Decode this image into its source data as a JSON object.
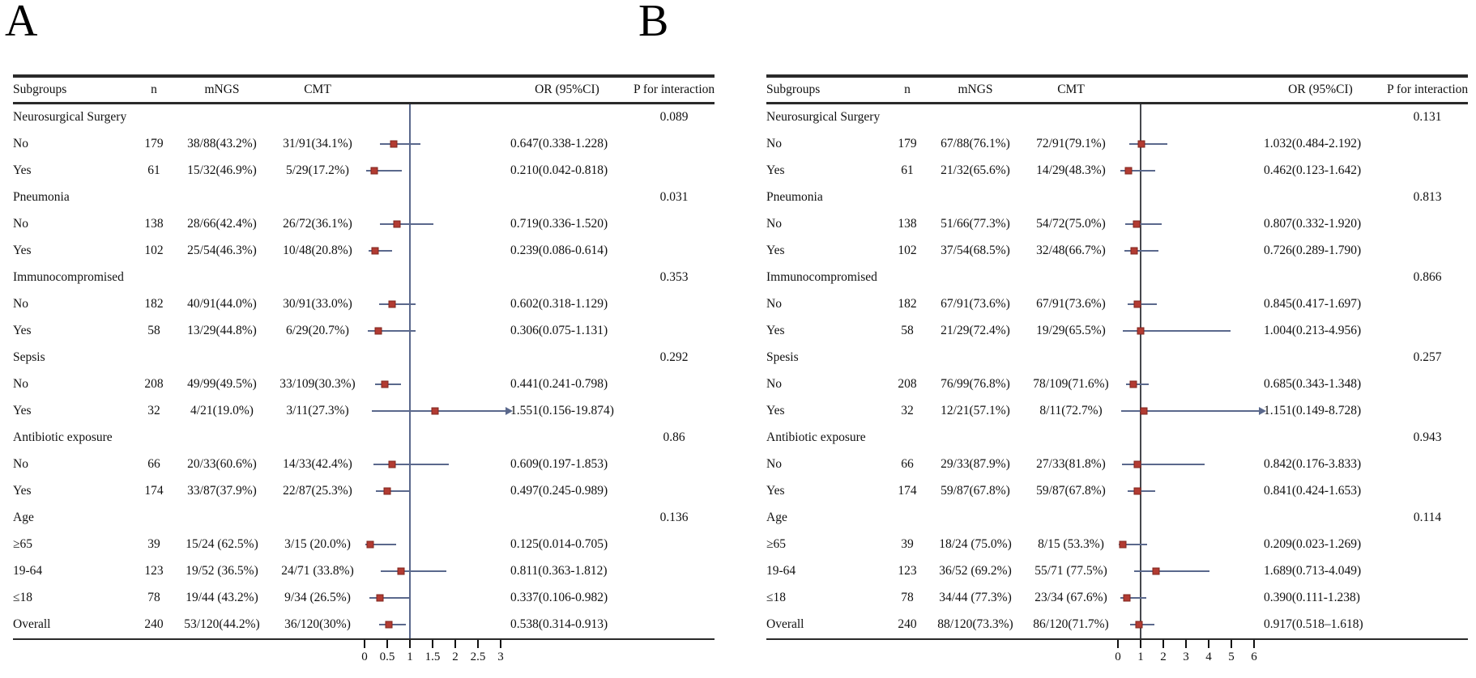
{
  "colors": {
    "marker_fill": "#b23b32",
    "marker_border": "#7e241e",
    "ci_line": "#5a688c",
    "table_rule": "#2a2a2a",
    "text": "#111111"
  },
  "chart_data": [
    {
      "type": "forest",
      "letter": "A",
      "columns": [
        "Subgroups",
        "n",
        "mNGS",
        "CMT",
        "OR (95%CI)",
        "P for interaction"
      ],
      "axis": {
        "min": 0,
        "max": 3,
        "refline": 1,
        "ticks": [
          0,
          0.5,
          1,
          1.5,
          2,
          2.5,
          3
        ],
        "tick_labels": [
          "0",
          "0.5",
          "1",
          "1.5",
          "2",
          "2.5",
          "3"
        ]
      },
      "refline_color": "#5a688c",
      "rows": [
        {
          "type": "group",
          "label": "Neurosurgical Surgery",
          "p": "0.089"
        },
        {
          "type": "data",
          "label": "No",
          "n": "179",
          "mngs": "38/88(43.2%)",
          "cmt": "31/91(34.1%)",
          "or_text": "0.647(0.338-1.228)",
          "or": 0.647,
          "lo": 0.338,
          "hi": 1.228
        },
        {
          "type": "data",
          "label": "Yes",
          "n": "61",
          "mngs": "15/32(46.9%)",
          "cmt": "5/29(17.2%)",
          "or_text": "0.210(0.042-0.818)",
          "or": 0.21,
          "lo": 0.042,
          "hi": 0.818
        },
        {
          "type": "group",
          "label": "Pneumonia",
          "p": "0.031"
        },
        {
          "type": "data",
          "label": "No",
          "n": "138",
          "mngs": "28/66(42.4%)",
          "cmt": "26/72(36.1%)",
          "or_text": "0.719(0.336-1.520)",
          "or": 0.719,
          "lo": 0.336,
          "hi": 1.52
        },
        {
          "type": "data",
          "label": "Yes",
          "n": "102",
          "mngs": "25/54(46.3%)",
          "cmt": "10/48(20.8%)",
          "or_text": "0.239(0.086-0.614)",
          "or": 0.239,
          "lo": 0.086,
          "hi": 0.614
        },
        {
          "type": "group",
          "label": "Immunocompromised",
          "p": "0.353"
        },
        {
          "type": "data",
          "label": "No",
          "n": "182",
          "mngs": "40/91(44.0%)",
          "cmt": "30/91(33.0%)",
          "or_text": "0.602(0.318-1.129)",
          "or": 0.602,
          "lo": 0.318,
          "hi": 1.129
        },
        {
          "type": "data",
          "label": "Yes",
          "n": "58",
          "mngs": "13/29(44.8%)",
          "cmt": "6/29(20.7%)",
          "or_text": "0.306(0.075-1.131)",
          "or": 0.306,
          "lo": 0.075,
          "hi": 1.131
        },
        {
          "type": "group",
          "label": "Sepsis",
          "p": "0.292"
        },
        {
          "type": "data",
          "label": "No",
          "n": "208",
          "mngs": "49/99(49.5%)",
          "cmt": "33/109(30.3%)",
          "or_text": "0.441(0.241-0.798)",
          "or": 0.441,
          "lo": 0.241,
          "hi": 0.798
        },
        {
          "type": "data",
          "label": "Yes",
          "n": "32",
          "mngs": "4/21(19.0%)",
          "cmt": "3/11(27.3%)",
          "or_text": "1.551(0.156-19.874)",
          "or": 1.551,
          "lo": 0.156,
          "hi": 19.874
        },
        {
          "type": "group",
          "label": "Antibiotic exposure",
          "p": "0.86"
        },
        {
          "type": "data",
          "label": "No",
          "n": "66",
          "mngs": "20/33(60.6%)",
          "cmt": "14/33(42.4%)",
          "or_text": "0.609(0.197-1.853)",
          "or": 0.609,
          "lo": 0.197,
          "hi": 1.853
        },
        {
          "type": "data",
          "label": "Yes",
          "n": "174",
          "mngs": "33/87(37.9%)",
          "cmt": "22/87(25.3%)",
          "or_text": "0.497(0.245-0.989)",
          "or": 0.497,
          "lo": 0.245,
          "hi": 0.989
        },
        {
          "type": "group",
          "label": "Age",
          "p": "0.136"
        },
        {
          "type": "data",
          "label": "≥65",
          "n": "39",
          "mngs": "15/24 (62.5%)",
          "cmt": "3/15 (20.0%)",
          "or_text": "0.125(0.014-0.705)",
          "or": 0.125,
          "lo": 0.014,
          "hi": 0.705
        },
        {
          "type": "data",
          "label": "19-64",
          "n": "123",
          "mngs": "19/52 (36.5%)",
          "cmt": "24/71 (33.8%)",
          "or_text": "0.811(0.363-1.812)",
          "or": 0.811,
          "lo": 0.363,
          "hi": 1.812
        },
        {
          "type": "data",
          "label": "≤18",
          "n": "78",
          "mngs": "19/44 (43.2%)",
          "cmt": "9/34 (26.5%)",
          "or_text": "0.337(0.106-0.982)",
          "or": 0.337,
          "lo": 0.106,
          "hi": 0.982
        },
        {
          "type": "data",
          "label": "Overall",
          "n": "240",
          "mngs": "53/120(44.2%)",
          "cmt": "36/120(30%)",
          "or_text": "0.538(0.314-0.913)",
          "or": 0.538,
          "lo": 0.314,
          "hi": 0.913
        }
      ]
    },
    {
      "type": "forest",
      "letter": "B",
      "columns": [
        "Subgroups",
        "n",
        "mNGS",
        "CMT",
        "OR (95%CI)",
        "P for interaction"
      ],
      "axis": {
        "min": 0,
        "max": 6,
        "refline": 1,
        "ticks": [
          0,
          1,
          2,
          3,
          4,
          5,
          6
        ],
        "tick_labels": [
          "0",
          "1",
          "2",
          "3",
          "4",
          "5",
          "6"
        ]
      },
      "refline_color": "#46484e",
      "rows": [
        {
          "type": "group",
          "label": "Neurosurgical Surgery",
          "p": "0.131"
        },
        {
          "type": "data",
          "label": "No",
          "n": "179",
          "mngs": "67/88(76.1%)",
          "cmt": "72/91(79.1%)",
          "or_text": "1.032(0.484-2.192)",
          "or": 1.032,
          "lo": 0.484,
          "hi": 2.192
        },
        {
          "type": "data",
          "label": "Yes",
          "n": "61",
          "mngs": "21/32(65.6%)",
          "cmt": "14/29(48.3%)",
          "or_text": "0.462(0.123-1.642)",
          "or": 0.462,
          "lo": 0.123,
          "hi": 1.642
        },
        {
          "type": "group",
          "label": "Pneumonia",
          "p": "0.813"
        },
        {
          "type": "data",
          "label": "No",
          "n": "138",
          "mngs": "51/66(77.3%)",
          "cmt": "54/72(75.0%)",
          "or_text": "0.807(0.332-1.920)",
          "or": 0.807,
          "lo": 0.332,
          "hi": 1.92
        },
        {
          "type": "data",
          "label": "Yes",
          "n": "102",
          "mngs": "37/54(68.5%)",
          "cmt": "32/48(66.7%)",
          "or_text": "0.726(0.289-1.790)",
          "or": 0.726,
          "lo": 0.289,
          "hi": 1.79
        },
        {
          "type": "group",
          "label": "Immunocompromised",
          "p": "0.866"
        },
        {
          "type": "data",
          "label": "No",
          "n": "182",
          "mngs": "67/91(73.6%)",
          "cmt": "67/91(73.6%)",
          "or_text": "0.845(0.417-1.697)",
          "or": 0.845,
          "lo": 0.417,
          "hi": 1.697
        },
        {
          "type": "data",
          "label": "Yes",
          "n": "58",
          "mngs": "21/29(72.4%)",
          "cmt": "19/29(65.5%)",
          "or_text": "1.004(0.213-4.956)",
          "or": 1.004,
          "lo": 0.213,
          "hi": 4.956
        },
        {
          "type": "group",
          "label": "Spesis",
          "p": "0.257"
        },
        {
          "type": "data",
          "label": "No",
          "n": "208",
          "mngs": "76/99(76.8%)",
          "cmt": "78/109(71.6%)",
          "or_text": "0.685(0.343-1.348)",
          "or": 0.685,
          "lo": 0.343,
          "hi": 1.348
        },
        {
          "type": "data",
          "label": "Yes",
          "n": "32",
          "mngs": "12/21(57.1%)",
          "cmt": "8/11(72.7%)",
          "or_text": "1.151(0.149-8.728)",
          "or": 1.151,
          "lo": 0.149,
          "hi": 8.728
        },
        {
          "type": "group",
          "label": "Antibiotic exposure",
          "p": "0.943"
        },
        {
          "type": "data",
          "label": "No",
          "n": "66",
          "mngs": "29/33(87.9%)",
          "cmt": "27/33(81.8%)",
          "or_text": "0.842(0.176-3.833)",
          "or": 0.842,
          "lo": 0.176,
          "hi": 3.833
        },
        {
          "type": "data",
          "label": "Yes",
          "n": "174",
          "mngs": "59/87(67.8%)",
          "cmt": "59/87(67.8%)",
          "or_text": "0.841(0.424-1.653)",
          "or": 0.841,
          "lo": 0.424,
          "hi": 1.653
        },
        {
          "type": "group",
          "label": "Age",
          "p": "0.114"
        },
        {
          "type": "data",
          "label": "≥65",
          "n": "39",
          "mngs": "18/24 (75.0%)",
          "cmt": "8/15 (53.3%)",
          "or_text": "0.209(0.023-1.269)",
          "or": 0.209,
          "lo": 0.023,
          "hi": 1.269
        },
        {
          "type": "data",
          "label": "19-64",
          "n": "123",
          "mngs": "36/52 (69.2%)",
          "cmt": "55/71 (77.5%)",
          "or_text": "1.689(0.713-4.049)",
          "or": 1.689,
          "lo": 0.713,
          "hi": 4.049
        },
        {
          "type": "data",
          "label": "≤18",
          "n": "78",
          "mngs": "34/44 (77.3%)",
          "cmt": "23/34 (67.6%)",
          "or_text": "0.390(0.111-1.238)",
          "or": 0.39,
          "lo": 0.111,
          "hi": 1.238
        },
        {
          "type": "data",
          "label": "Overall",
          "n": "240",
          "mngs": "88/120(73.3%)",
          "cmt": "86/120(71.7%)",
          "or_text": "0.917(0.518–1.618)",
          "or": 0.917,
          "lo": 0.518,
          "hi": 1.618
        }
      ]
    }
  ]
}
